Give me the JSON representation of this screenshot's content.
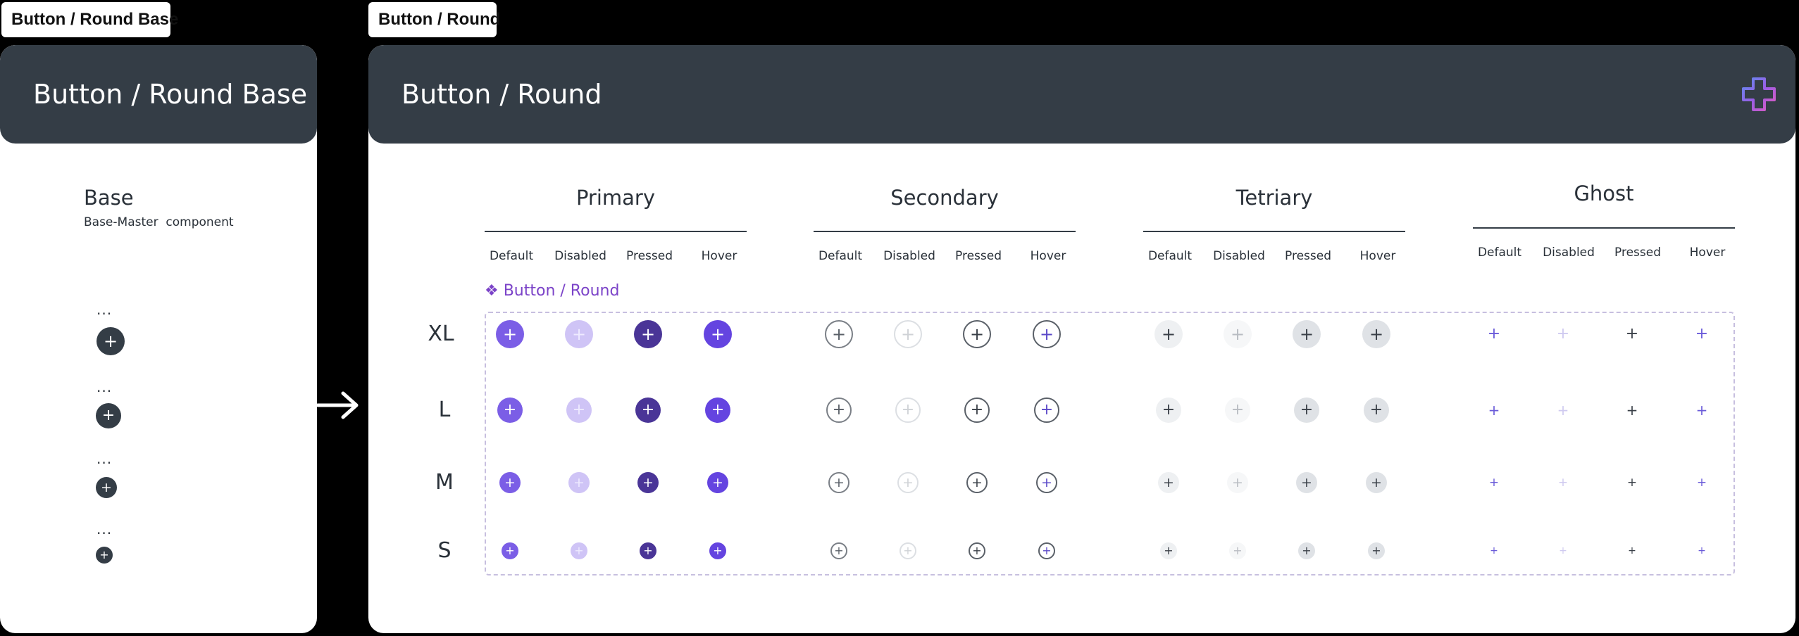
{
  "base_frame": {
    "tag": "Button / Round Base",
    "title": "Button / Round Base",
    "name": "Base",
    "description": "Base-Master  component",
    "dots": "...",
    "plus_glyph": "+"
  },
  "round_frame": {
    "tag": "Button / Round",
    "title": "Button / Round",
    "logo_icon": "plus-logo-icon",
    "component_name": "❖ Button / Round",
    "groups": [
      {
        "title": "Primary"
      },
      {
        "title": "Secondary"
      },
      {
        "title": "Tetriary"
      },
      {
        "title": "Ghost"
      }
    ],
    "states": [
      "Default",
      "Disabled",
      "Pressed",
      "Hover"
    ],
    "sizes": [
      "XL",
      "L",
      "M",
      "S"
    ],
    "plus_glyph": "+"
  },
  "colors": {
    "background": "#000000",
    "header": "#343d46",
    "primary_default": "#7b5ee6",
    "primary_disabled": "#cfc4f6",
    "primary_pressed": "#4a3597",
    "primary_hover": "#6444e0",
    "secondary_border": "#5a6068",
    "tertiary_fill": "#eef0f2",
    "tertiary_fill_dark": "#dfe2e6",
    "ghost_plus": "#6a5bd9",
    "accent_purple": "#7b43c8"
  }
}
